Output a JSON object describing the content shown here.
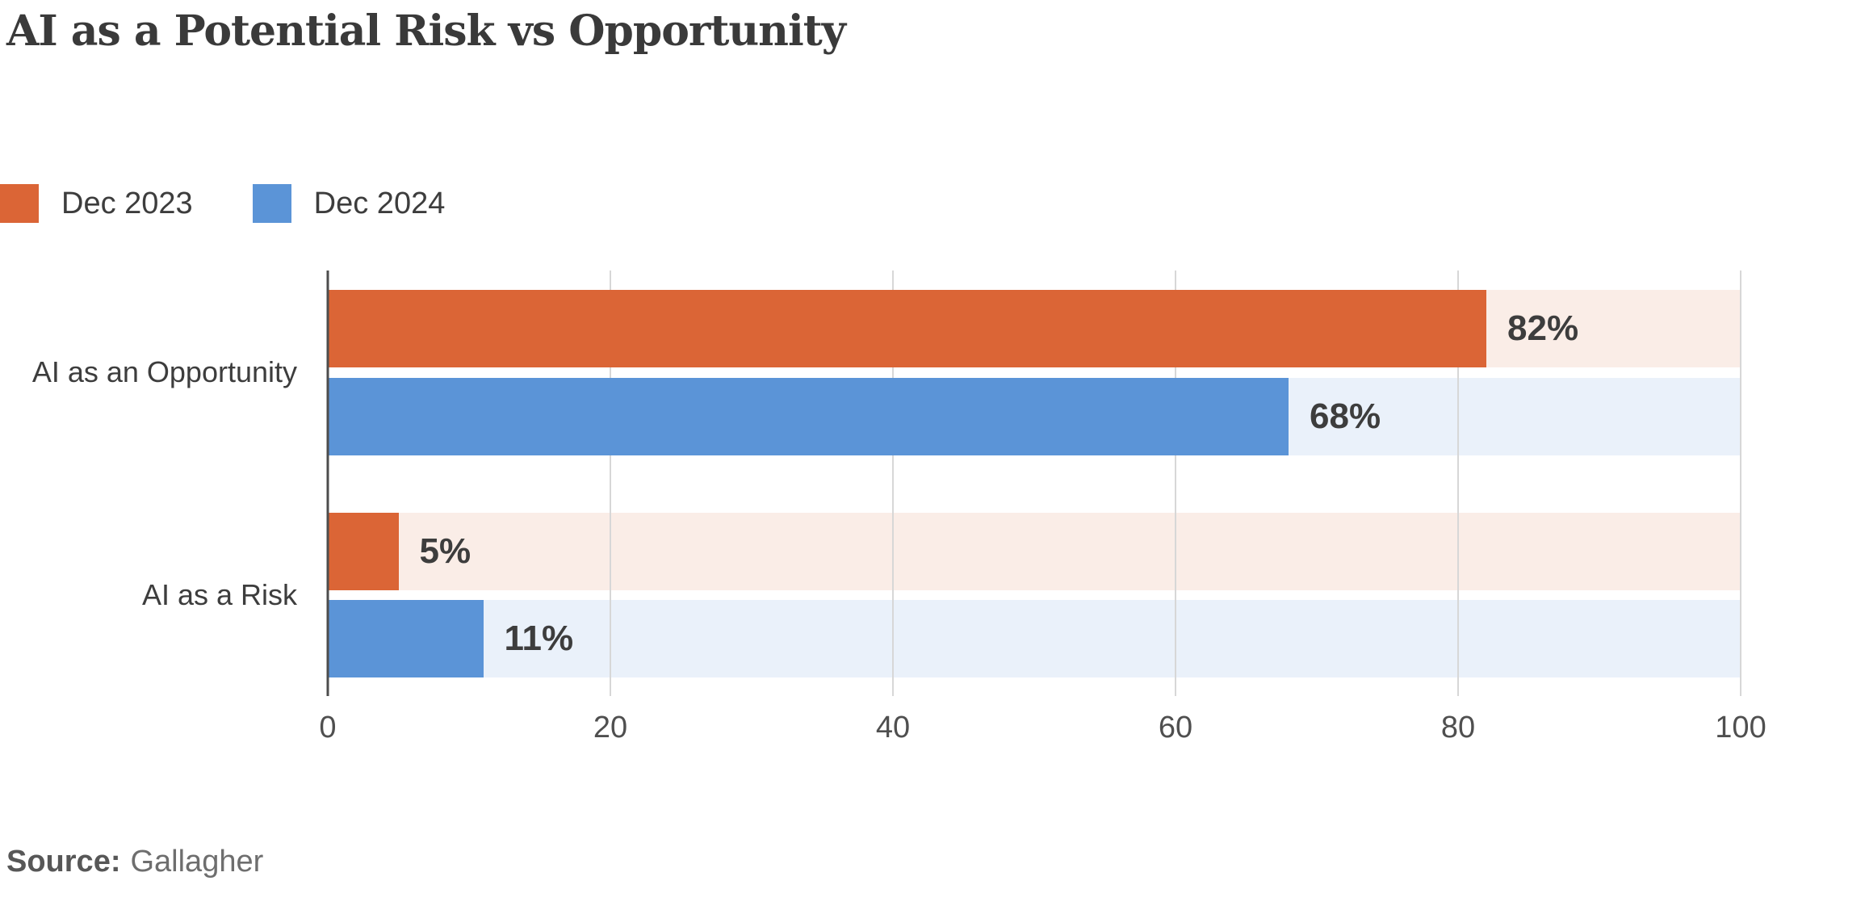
{
  "chart": {
    "title": "AI as a Potential Risk vs Opportunity"
  },
  "legend": [
    {
      "label": "Dec 2023",
      "color": "#DB6536"
    },
    {
      "label": "Dec 2024",
      "color": "#5B94D7"
    }
  ],
  "chart_data": {
    "type": "bar",
    "orientation": "horizontal",
    "title": "AI as a Potential Risk vs Opportunity",
    "categories": [
      "AI as an Opportunity",
      "AI as a Risk"
    ],
    "series": [
      {
        "name": "Dec 2023",
        "color": "#DB6536",
        "track_color": "#FAEDE7",
        "values": [
          82,
          5
        ],
        "labels": [
          "82%",
          "5%"
        ]
      },
      {
        "name": "Dec 2024",
        "color": "#5B94D7",
        "track_color": "#EAF1FA",
        "values": [
          68,
          11
        ],
        "labels": [
          "68%",
          "11%"
        ]
      }
    ],
    "xlim": [
      0,
      100
    ],
    "xticks": [
      0,
      20,
      40,
      60,
      80,
      100
    ],
    "grid": true,
    "gridline_color": "#d7d7d7",
    "axis_color": "#4d4d4d",
    "legend_position": "top-left"
  },
  "source": {
    "label": "Source:",
    "value": "Gallagher"
  }
}
